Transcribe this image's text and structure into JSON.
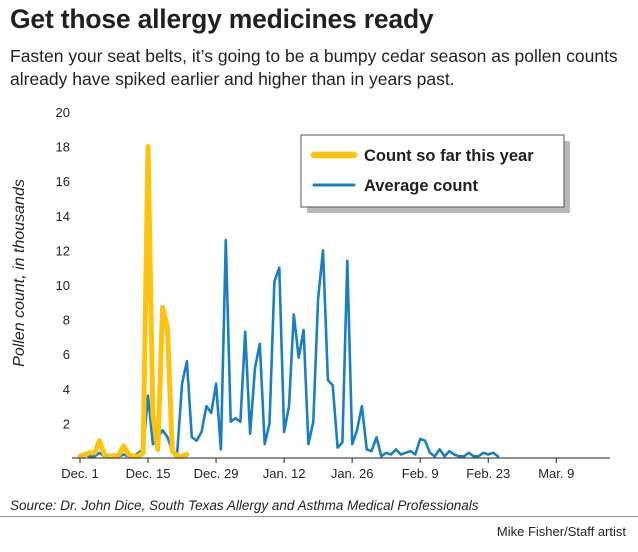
{
  "title": "Get those allergy medicines ready",
  "subtitle": "Fasten your seat belts, it’s going to be a bumpy cedar season as pollen counts already have spiked earlier and higher than in years past.",
  "source": "Source: Dr. John Dice, South Texas Allergy and Asthma Medical Professionals",
  "credit": "Mike Fisher/Staff artist",
  "colors": {
    "this_year": "#ffc20e",
    "average": "#1a7fc1",
    "axis": "#231f20"
  },
  "chart_data": {
    "type": "line",
    "ylabel": "Pollen count, in thousands",
    "ylim": [
      0,
      20
    ],
    "yticks": [
      "2",
      "4",
      "6",
      "8",
      "10",
      "12",
      "14",
      "16",
      "18",
      "20"
    ],
    "xlim": [
      0,
      106
    ],
    "xticks": [
      {
        "label": "Dec. 1",
        "day": 0
      },
      {
        "label": "Dec. 15",
        "day": 14
      },
      {
        "label": "Dec. 29",
        "day": 28
      },
      {
        "label": "Jan. 12",
        "day": 42
      },
      {
        "label": "Jan. 26",
        "day": 56
      },
      {
        "label": "Feb. 9",
        "day": 70
      },
      {
        "label": "Feb. 23",
        "day": 84
      },
      {
        "label": "Mar. 9",
        "day": 98
      }
    ],
    "legend": {
      "position": "top-right"
    },
    "series": [
      {
        "name": "Count so far this year",
        "color": "#ffc20e",
        "x": [
          0,
          1,
          2,
          3,
          4,
          5,
          6,
          7,
          8,
          9,
          10,
          11,
          12,
          13,
          14,
          15,
          16,
          17,
          18,
          19,
          20,
          21,
          22
        ],
        "y": [
          0.1,
          0.2,
          0.3,
          0.3,
          1.0,
          0.2,
          0.1,
          0.1,
          0.2,
          0.7,
          0.2,
          0.1,
          0.1,
          0.3,
          18.0,
          2.5,
          0.5,
          8.7,
          7.5,
          0.4,
          0.1,
          0.1,
          0.2
        ]
      },
      {
        "name": "Average count",
        "color": "#1a7fc1",
        "x": [
          0,
          1,
          2,
          3,
          4,
          5,
          6,
          7,
          8,
          9,
          10,
          11,
          12,
          13,
          14,
          15,
          16,
          17,
          18,
          19,
          20,
          21,
          22,
          23,
          24,
          25,
          26,
          27,
          28,
          29,
          30,
          31,
          32,
          33,
          34,
          35,
          36,
          37,
          38,
          39,
          40,
          41,
          42,
          43,
          44,
          45,
          46,
          47,
          48,
          49,
          50,
          51,
          52,
          53,
          54,
          55,
          56,
          57,
          58,
          59,
          60,
          61,
          62,
          63,
          64,
          65,
          66,
          67,
          68,
          69,
          70,
          71,
          72,
          73,
          74,
          75,
          76,
          77,
          78,
          79,
          80,
          81,
          82,
          83,
          84,
          85,
          86
        ],
        "y": [
          0.1,
          0.2,
          0.1,
          0.1,
          0.3,
          0.1,
          0.1,
          0.2,
          0.1,
          0.2,
          0.1,
          0.1,
          0.3,
          0.5,
          3.6,
          0.8,
          1.2,
          1.6,
          1.2,
          0.4,
          0.3,
          4.3,
          5.6,
          1.2,
          1.0,
          1.5,
          3.0,
          2.6,
          4.3,
          0.5,
          12.6,
          2.1,
          2.3,
          2.1,
          7.3,
          1.4,
          5.2,
          6.6,
          0.8,
          2.0,
          10.2,
          11.0,
          1.5,
          3.0,
          8.3,
          5.8,
          7.4,
          0.8,
          2.1,
          9.2,
          12.0,
          4.5,
          4.2,
          0.6,
          0.9,
          11.4,
          0.8,
          1.6,
          3.0,
          0.5,
          0.4,
          1.2,
          0.1,
          0.3,
          0.2,
          0.5,
          0.2,
          0.3,
          0.4,
          0.2,
          1.1,
          1.0,
          0.3,
          0.1,
          0.5,
          0.1,
          0.4,
          0.2,
          0.1,
          0.1,
          0.3,
          0.1,
          0.1,
          0.3,
          0.2,
          0.3,
          0.1
        ]
      }
    ]
  }
}
